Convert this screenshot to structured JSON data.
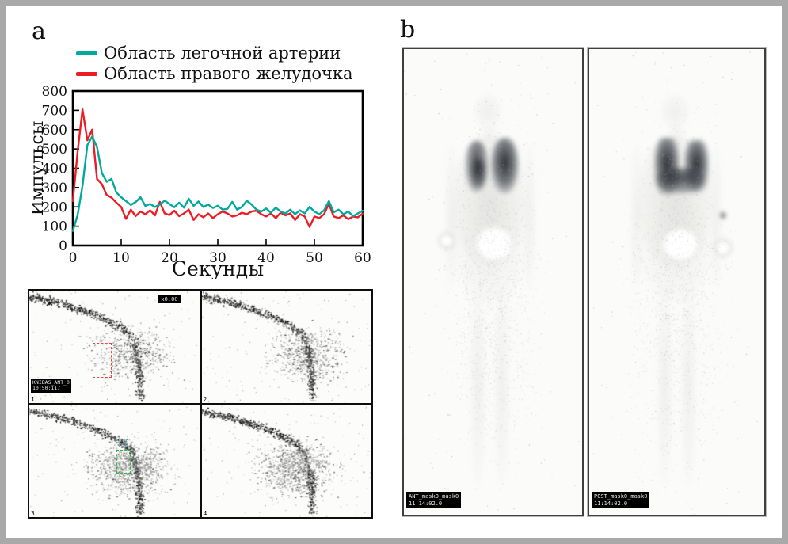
{
  "panel_a": {
    "label": "a"
  },
  "panel_b": {
    "label": "b"
  },
  "chart_data": {
    "type": "line",
    "title": "",
    "xlabel": "Секунды",
    "ylabel": "Импульсы",
    "xlim": [
      0,
      60
    ],
    "ylim": [
      0,
      800
    ],
    "xticks": [
      0,
      10,
      20,
      30,
      40,
      50,
      60
    ],
    "yticks": [
      0,
      100,
      200,
      300,
      400,
      500,
      600,
      700,
      800
    ],
    "grid": false,
    "legend_position": "above-plot-left",
    "x": [
      0,
      1,
      2,
      3,
      4,
      5,
      6,
      7,
      8,
      9,
      10,
      11,
      12,
      13,
      14,
      15,
      16,
      17,
      18,
      19,
      20,
      21,
      22,
      23,
      24,
      25,
      26,
      27,
      28,
      29,
      30,
      31,
      32,
      33,
      34,
      35,
      36,
      37,
      38,
      39,
      40,
      41,
      42,
      43,
      44,
      45,
      46,
      47,
      48,
      49,
      50,
      51,
      52,
      53,
      54,
      55,
      56,
      57,
      58,
      59,
      60
    ],
    "series": [
      {
        "name": "Область легочной артерии",
        "color": "#00a99d",
        "values": [
          75,
          160,
          310,
          520,
          565,
          510,
          375,
          330,
          345,
          275,
          250,
          230,
          210,
          225,
          250,
          205,
          215,
          200,
          212,
          232,
          215,
          198,
          222,
          196,
          242,
          205,
          228,
          200,
          212,
          194,
          206,
          186,
          190,
          226,
          186,
          200,
          232,
          212,
          186,
          176,
          192,
          170,
          196,
          176,
          166,
          186,
          162,
          182,
          166,
          200,
          176,
          162,
          182,
          230,
          172,
          186,
          162,
          176,
          152,
          166,
          180
        ]
      },
      {
        "name": "Область правого желудочка",
        "color": "#ed1c24",
        "values": [
          230,
          490,
          705,
          545,
          600,
          345,
          318,
          262,
          248,
          222,
          200,
          138,
          186,
          152,
          176,
          162,
          182,
          156,
          226,
          166,
          158,
          180,
          152,
          166,
          186,
          132,
          162,
          146,
          166,
          142,
          162,
          176,
          166,
          150,
          156,
          170,
          162,
          176,
          180,
          162,
          150,
          166,
          142,
          170,
          156,
          166,
          132,
          162,
          150,
          96,
          150,
          142,
          162,
          216,
          150,
          142,
          156,
          136,
          150,
          146,
          166
        ]
      }
    ]
  },
  "angio": {
    "frame_numbers": [
      "1",
      "2",
      "3",
      "4"
    ],
    "overlay_tag": "x0.00",
    "info_label": [
      "KNIBAS_ANT_0",
      "10:50:117"
    ]
  },
  "scans": [
    {
      "label_line1": "ANT_mask0_mask0",
      "label_line2": "11:14:02.0"
    },
    {
      "label_line1": "POST_mask0_mask0",
      "label_line2": "11:14:02.0"
    }
  ],
  "colors": {
    "teal": "#00a99d",
    "red": "#ed1c24",
    "page_border": "#a9a9a9"
  }
}
